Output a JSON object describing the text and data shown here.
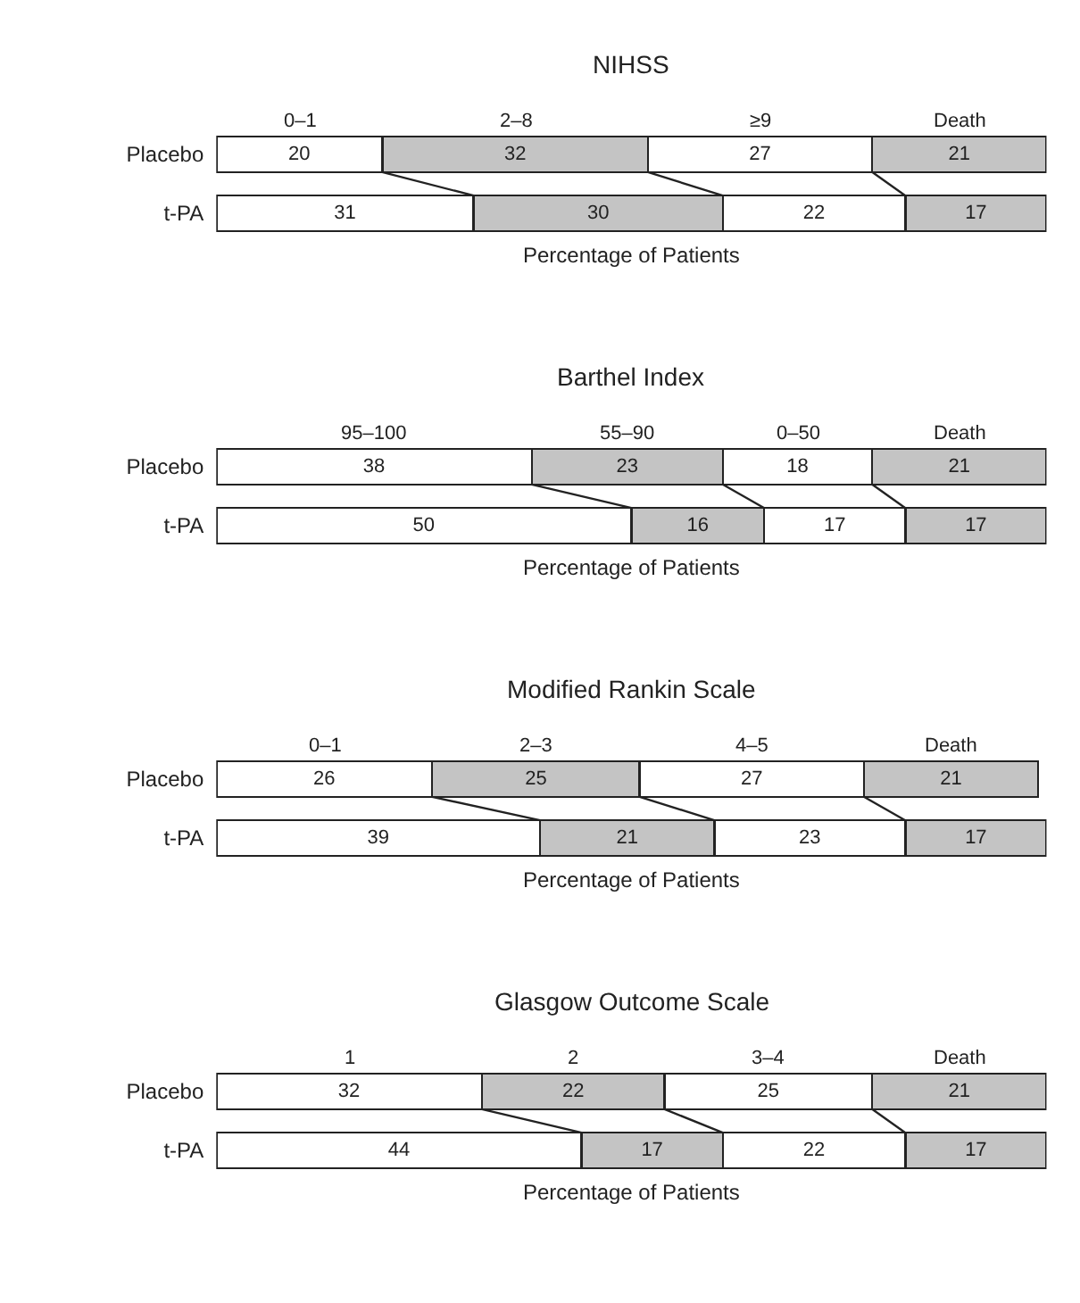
{
  "chart_data": [
    {
      "type": "bar",
      "orientation": "horizontal",
      "stacked": true,
      "data_labels": true,
      "title": "NIHSS",
      "xlabel": "Percentage of Patients",
      "categories": [
        "Placebo",
        "t-PA"
      ],
      "series": [
        {
          "name": "0–1",
          "color": "#ffffff",
          "values": [
            20,
            31
          ]
        },
        {
          "name": "2–8",
          "color": "#c4c4c4",
          "values": [
            32,
            30
          ]
        },
        {
          "name": "≥9",
          "color": "#ffffff",
          "values": [
            27,
            22
          ]
        },
        {
          "name": "Death",
          "color": "#c4c4c4",
          "values": [
            21,
            17
          ]
        }
      ]
    },
    {
      "type": "bar",
      "orientation": "horizontal",
      "stacked": true,
      "data_labels": true,
      "title": "Barthel Index",
      "xlabel": "Percentage of Patients",
      "categories": [
        "Placebo",
        "t-PA"
      ],
      "series": [
        {
          "name": "95–100",
          "color": "#ffffff",
          "values": [
            38,
            50
          ]
        },
        {
          "name": "55–90",
          "color": "#c4c4c4",
          "values": [
            23,
            16
          ]
        },
        {
          "name": "0–50",
          "color": "#ffffff",
          "values": [
            18,
            17
          ]
        },
        {
          "name": "Death",
          "color": "#c4c4c4",
          "values": [
            21,
            17
          ]
        }
      ]
    },
    {
      "type": "bar",
      "orientation": "horizontal",
      "stacked": true,
      "data_labels": true,
      "title": "Modified Rankin Scale",
      "xlabel": "Percentage of Patients",
      "categories": [
        "Placebo",
        "t-PA"
      ],
      "series": [
        {
          "name": "0–1",
          "color": "#ffffff",
          "values": [
            26,
            39
          ]
        },
        {
          "name": "2–3",
          "color": "#c4c4c4",
          "values": [
            25,
            21
          ]
        },
        {
          "name": "4–5",
          "color": "#ffffff",
          "values": [
            27,
            23
          ]
        },
        {
          "name": "Death",
          "color": "#c4c4c4",
          "values": [
            21,
            17
          ]
        }
      ]
    },
    {
      "type": "bar",
      "orientation": "horizontal",
      "stacked": true,
      "data_labels": true,
      "title": "Glasgow Outcome Scale",
      "xlabel": "Percentage of Patients",
      "categories": [
        "Placebo",
        "t-PA"
      ],
      "series": [
        {
          "name": "1",
          "color": "#ffffff",
          "values": [
            32,
            44
          ]
        },
        {
          "name": "2",
          "color": "#c4c4c4",
          "values": [
            22,
            17
          ]
        },
        {
          "name": "3–4",
          "color": "#ffffff",
          "values": [
            25,
            22
          ]
        },
        {
          "name": "Death",
          "color": "#c4c4c4",
          "values": [
            21,
            17
          ]
        }
      ]
    }
  ]
}
